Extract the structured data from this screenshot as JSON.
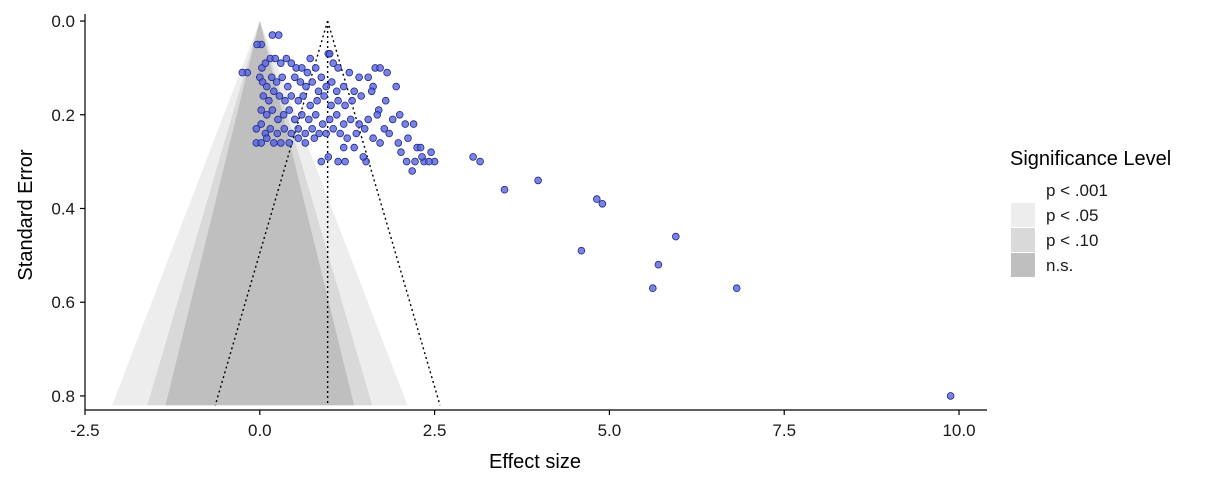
{
  "chart_data": {
    "type": "scatter",
    "subtype": "contour-enhanced funnel plot",
    "xlabel": "Effect size",
    "ylabel": "Standard Error",
    "xlim": [
      -2.5,
      10.4
    ],
    "ylim": [
      0.83,
      -0.015
    ],
    "y_reversed": true,
    "x_ticks": [
      -2.5,
      0.0,
      2.5,
      5.0,
      7.5,
      10.0
    ],
    "x_tick_labels": [
      "-2.5",
      "0.0",
      "2.5",
      "5.0",
      "7.5",
      "10.0"
    ],
    "y_ticks": [
      0.0,
      0.2,
      0.4,
      0.6,
      0.8
    ],
    "y_tick_labels": [
      "0.0",
      "0.2",
      "0.4",
      "0.6",
      "0.8"
    ],
    "grid": false,
    "contours": {
      "center": 0.0,
      "se_max": 0.82,
      "bands": [
        {
          "label": "p < .001",
          "z": 3.29,
          "color": "#ffffff"
        },
        {
          "label": "p < .05",
          "z": 2.576,
          "color": "#ededed"
        },
        {
          "label": "p < .10",
          "z": 1.96,
          "color": "#d9d9d9"
        },
        {
          "label": "n.s.",
          "z": 1.645,
          "color": "#bfbfbf"
        }
      ]
    },
    "pooled_estimate": {
      "value": 0.97,
      "ci_z": 1.96,
      "line_style": "dotted"
    },
    "point_color": "#5560dd",
    "point_edge_color": "#1f2a8a",
    "points": [
      [
        0.18,
        0.03
      ],
      [
        0.27,
        0.03
      ],
      [
        0.98,
        0.07
      ],
      [
        0.72,
        0.08
      ],
      [
        1.0,
        0.07
      ],
      [
        0.02,
        0.05
      ],
      [
        -0.04,
        0.05
      ],
      [
        -0.18,
        0.11
      ],
      [
        -0.25,
        0.11
      ],
      [
        0.03,
        0.1
      ],
      [
        0.08,
        0.09
      ],
      [
        0.15,
        0.08
      ],
      [
        0.22,
        0.08
      ],
      [
        0.3,
        0.09
      ],
      [
        0.38,
        0.08
      ],
      [
        0.45,
        0.09
      ],
      [
        0.52,
        0.1
      ],
      [
        0.6,
        0.1
      ],
      [
        0.68,
        0.11
      ],
      [
        0.8,
        0.1
      ],
      [
        0.88,
        0.12
      ],
      [
        1.05,
        0.09
      ],
      [
        1.12,
        0.1
      ],
      [
        1.28,
        0.11
      ],
      [
        1.42,
        0.12
      ],
      [
        1.55,
        0.12
      ],
      [
        1.65,
        0.1
      ],
      [
        1.62,
        0.14
      ],
      [
        1.72,
        0.1
      ],
      [
        1.82,
        0.11
      ],
      [
        1.95,
        0.14
      ],
      [
        0.0,
        0.12
      ],
      [
        0.04,
        0.13
      ],
      [
        0.1,
        0.14
      ],
      [
        0.17,
        0.12
      ],
      [
        0.24,
        0.13
      ],
      [
        0.32,
        0.12
      ],
      [
        0.4,
        0.14
      ],
      [
        0.5,
        0.12
      ],
      [
        0.58,
        0.13
      ],
      [
        0.66,
        0.14
      ],
      [
        0.75,
        0.13
      ],
      [
        0.84,
        0.15
      ],
      [
        0.95,
        0.14
      ],
      [
        1.03,
        0.13
      ],
      [
        1.1,
        0.15
      ],
      [
        1.2,
        0.14
      ],
      [
        1.35,
        0.15
      ],
      [
        0.05,
        0.16
      ],
      [
        0.13,
        0.17
      ],
      [
        0.2,
        0.15
      ],
      [
        0.28,
        0.16
      ],
      [
        0.36,
        0.17
      ],
      [
        0.45,
        0.16
      ],
      [
        0.55,
        0.17
      ],
      [
        0.62,
        0.16
      ],
      [
        0.72,
        0.18
      ],
      [
        0.82,
        0.17
      ],
      [
        0.92,
        0.16
      ],
      [
        1.02,
        0.18
      ],
      [
        1.12,
        0.17
      ],
      [
        1.22,
        0.18
      ],
      [
        1.32,
        0.17
      ],
      [
        1.45,
        0.16
      ],
      [
        1.6,
        0.15
      ],
      [
        1.7,
        0.19
      ],
      [
        1.8,
        0.17
      ],
      [
        0.02,
        0.19
      ],
      [
        0.1,
        0.2
      ],
      [
        0.18,
        0.19
      ],
      [
        0.26,
        0.21
      ],
      [
        0.34,
        0.2
      ],
      [
        0.42,
        0.19
      ],
      [
        0.5,
        0.21
      ],
      [
        0.6,
        0.2
      ],
      [
        0.7,
        0.21
      ],
      [
        0.8,
        0.2
      ],
      [
        0.9,
        0.22
      ],
      [
        1.0,
        0.21
      ],
      [
        1.1,
        0.2
      ],
      [
        1.2,
        0.22
      ],
      [
        1.3,
        0.21
      ],
      [
        1.42,
        0.22
      ],
      [
        1.55,
        0.21
      ],
      [
        1.68,
        0.2
      ],
      [
        1.78,
        0.23
      ],
      [
        1.9,
        0.21
      ],
      [
        2.0,
        0.2
      ],
      [
        2.08,
        0.22
      ],
      [
        2.2,
        0.22
      ],
      [
        -0.05,
        0.23
      ],
      [
        0.02,
        0.22
      ],
      [
        0.08,
        0.24
      ],
      [
        0.15,
        0.23
      ],
      [
        0.25,
        0.24
      ],
      [
        0.35,
        0.23
      ],
      [
        0.45,
        0.24
      ],
      [
        0.55,
        0.23
      ],
      [
        0.65,
        0.24
      ],
      [
        0.75,
        0.23
      ],
      [
        0.85,
        0.24
      ],
      [
        0.95,
        0.24
      ],
      [
        1.05,
        0.23
      ],
      [
        1.15,
        0.24
      ],
      [
        1.25,
        0.25
      ],
      [
        1.38,
        0.24
      ],
      [
        1.5,
        0.23
      ],
      [
        1.62,
        0.25
      ],
      [
        1.72,
        0.26
      ],
      [
        1.85,
        0.24
      ],
      [
        1.98,
        0.26
      ],
      [
        2.12,
        0.25
      ],
      [
        2.25,
        0.27
      ],
      [
        2.3,
        0.27
      ],
      [
        -0.05,
        0.26
      ],
      [
        0.02,
        0.26
      ],
      [
        0.1,
        0.25
      ],
      [
        0.2,
        0.26
      ],
      [
        0.3,
        0.26
      ],
      [
        0.42,
        0.26
      ],
      [
        0.55,
        0.25
      ],
      [
        0.65,
        0.26
      ],
      [
        0.78,
        0.25
      ],
      [
        1.2,
        0.27
      ],
      [
        1.35,
        0.27
      ],
      [
        2.02,
        0.28
      ],
      [
        2.1,
        0.3
      ],
      [
        2.22,
        0.3
      ],
      [
        2.35,
        0.3
      ],
      [
        2.45,
        0.28
      ],
      [
        2.5,
        0.3
      ],
      [
        2.18,
        0.32
      ],
      [
        2.32,
        0.29
      ],
      [
        2.42,
        0.3
      ],
      [
        1.12,
        0.3
      ],
      [
        1.22,
        0.3
      ],
      [
        1.52,
        0.3
      ],
      [
        1.48,
        0.29
      ],
      [
        0.88,
        0.3
      ],
      [
        0.98,
        0.29
      ],
      [
        3.05,
        0.29
      ],
      [
        3.15,
        0.3
      ],
      [
        3.5,
        0.36
      ],
      [
        3.98,
        0.34
      ],
      [
        4.82,
        0.38
      ],
      [
        4.9,
        0.39
      ],
      [
        5.95,
        0.46
      ],
      [
        4.6,
        0.49
      ],
      [
        5.7,
        0.52
      ],
      [
        5.62,
        0.57
      ],
      [
        6.82,
        0.57
      ],
      [
        9.88,
        0.8
      ]
    ]
  }
}
